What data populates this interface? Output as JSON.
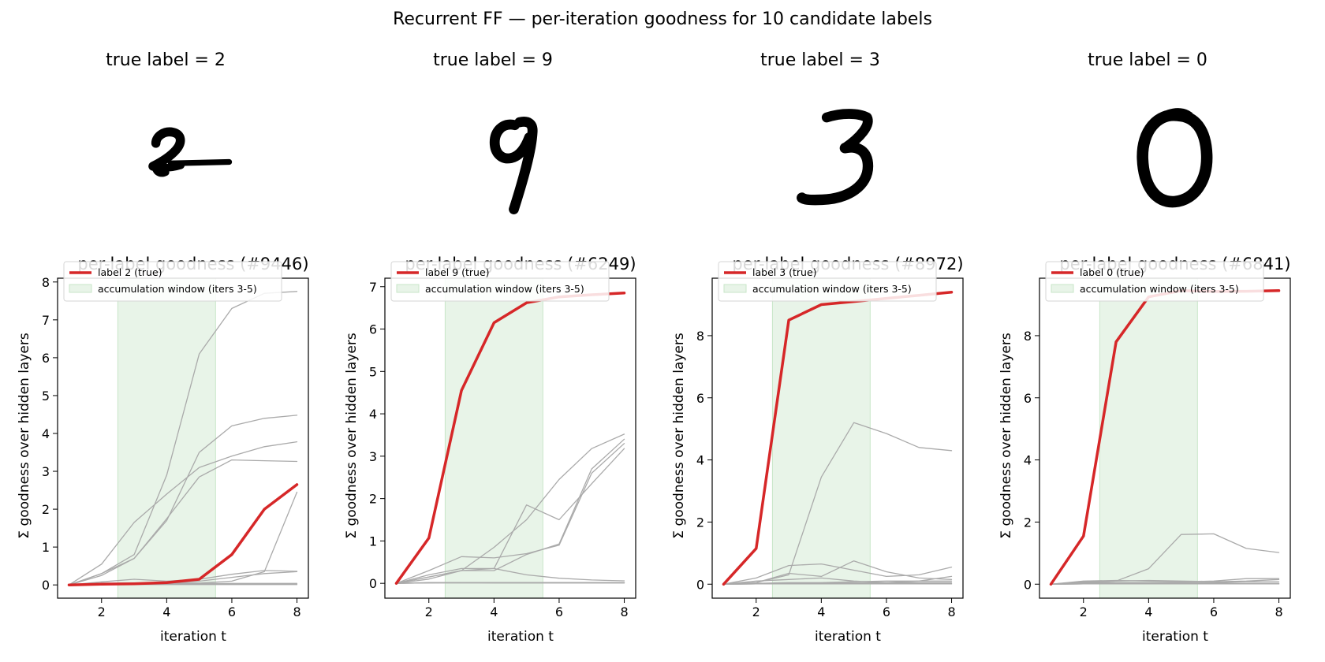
{
  "figure_title": "Recurrent FF — per-iteration goodness for 10 candidate labels",
  "colors": {
    "true_label": "#d62728",
    "other_labels": "#aaaaaa",
    "window_fill": "#e8f4e8",
    "window_edge": "#c8e6c8"
  },
  "panels": [
    {
      "digit_title": "true label = 2",
      "digit_icon": "handwritten-digit-2"
    },
    {
      "digit_title": "true label = 9",
      "digit_icon": "handwritten-digit-9"
    },
    {
      "digit_title": "true label = 3",
      "digit_icon": "handwritten-digit-3"
    },
    {
      "digit_title": "true label = 0",
      "digit_icon": "handwritten-digit-0"
    }
  ],
  "chart_data": [
    {
      "type": "line",
      "title": "per-label goodness (#9446)",
      "xlabel": "iteration t",
      "ylabel": "Σ goodness over hidden layers",
      "x": [
        1,
        2,
        3,
        4,
        5,
        6,
        7,
        8
      ],
      "xlim": [
        0.65,
        8.35
      ],
      "ylim": [
        -0.35,
        8.1
      ],
      "xticks": [
        2,
        4,
        6,
        8
      ],
      "yticks": [
        0,
        1,
        2,
        3,
        4,
        5,
        6,
        7,
        8
      ],
      "window": [
        2.5,
        5.5
      ],
      "legend": {
        "position": "top-left",
        "true_entry": "label 2 (true)",
        "window_entry": "accumulation window (iters 3-5)"
      },
      "series": [
        {
          "true": true,
          "values": [
            0,
            0.02,
            0.03,
            0.06,
            0.15,
            0.8,
            2.0,
            2.65
          ]
        },
        {
          "values": [
            0,
            0.3,
            0.8,
            2.9,
            6.1,
            7.3,
            7.7,
            7.75
          ]
        },
        {
          "values": [
            0,
            0.55,
            1.65,
            2.4,
            3.1,
            3.4,
            3.65,
            3.78
          ]
        },
        {
          "values": [
            0,
            0.3,
            0.7,
            1.7,
            3.5,
            4.2,
            4.4,
            4.48
          ]
        },
        {
          "values": [
            0,
            0.25,
            0.7,
            1.75,
            2.85,
            3.3,
            3.28,
            3.26
          ]
        },
        {
          "values": [
            0,
            0.05,
            0.05,
            0.05,
            0.05,
            0.1,
            0.35,
            2.45
          ]
        },
        {
          "values": [
            0,
            0.08,
            0.15,
            0.1,
            0.15,
            0.28,
            0.38,
            0.36
          ]
        },
        {
          "values": [
            0,
            0.03,
            0.04,
            0.05,
            0.1,
            0.2,
            0.3,
            0.35
          ]
        },
        {
          "values": [
            0,
            0.02,
            0.03,
            0.03,
            0.04,
            0.04,
            0.04,
            0.04
          ]
        },
        {
          "values": [
            0,
            0.01,
            0.01,
            0.01,
            0.01,
            0.01,
            0.01,
            0.01
          ]
        }
      ]
    },
    {
      "type": "line",
      "title": "per-label goodness (#6249)",
      "xlabel": "iteration t",
      "ylabel": "Σ goodness over hidden layers",
      "x": [
        1,
        2,
        3,
        4,
        5,
        6,
        7,
        8
      ],
      "xlim": [
        0.65,
        8.35
      ],
      "ylim": [
        -0.35,
        7.2
      ],
      "xticks": [
        2,
        4,
        6,
        8
      ],
      "yticks": [
        0,
        1,
        2,
        3,
        4,
        5,
        6,
        7
      ],
      "window": [
        2.5,
        5.5
      ],
      "legend": {
        "position": "top-left",
        "true_entry": "label 9 (true)",
        "window_entry": "accumulation window (iters 3-5)"
      },
      "series": [
        {
          "true": true,
          "values": [
            0,
            1.07,
            4.55,
            6.15,
            6.62,
            6.76,
            6.81,
            6.85
          ]
        },
        {
          "values": [
            0,
            0.2,
            0.35,
            0.35,
            1.85,
            1.5,
            2.35,
            3.18
          ]
        },
        {
          "values": [
            0,
            0.15,
            0.3,
            0.85,
            1.5,
            2.45,
            3.18,
            3.52
          ]
        },
        {
          "values": [
            0,
            0.1,
            0.3,
            0.3,
            0.68,
            0.93,
            2.7,
            3.4
          ]
        },
        {
          "values": [
            0,
            0.3,
            0.63,
            0.6,
            0.7,
            0.9,
            2.6,
            3.3
          ]
        },
        {
          "values": [
            0,
            0.15,
            0.3,
            0.35,
            0.2,
            0.12,
            0.08,
            0.06
          ]
        },
        {
          "values": [
            0,
            0.02,
            0.02,
            0.02,
            0.02,
            0.02,
            0.02,
            0.02
          ]
        },
        {
          "values": [
            0,
            0.01,
            0.01,
            0.01,
            0.01,
            0.01,
            0.01,
            0.01
          ]
        },
        {
          "values": [
            0,
            0.01,
            0.02,
            0.01,
            0.01,
            0.01,
            0.01,
            0.01
          ]
        },
        {
          "values": [
            0,
            0.01,
            0.01,
            0.01,
            0.01,
            0.01,
            0.01,
            0.01
          ]
        }
      ]
    },
    {
      "type": "line",
      "title": "per-label goodness (#8972)",
      "xlabel": "iteration t",
      "ylabel": "Σ goodness over hidden layers",
      "x": [
        1,
        2,
        3,
        4,
        5,
        6,
        7,
        8
      ],
      "xlim": [
        0.65,
        8.35
      ],
      "ylim": [
        -0.45,
        9.85
      ],
      "xticks": [
        2,
        4,
        6,
        8
      ],
      "yticks": [
        0,
        2,
        4,
        6,
        8
      ],
      "window": [
        2.5,
        5.5
      ],
      "legend": {
        "position": "top-left",
        "true_entry": "label 3 (true)",
        "window_entry": "accumulation window (iters 3-5)"
      },
      "series": [
        {
          "true": true,
          "values": [
            0,
            1.15,
            8.5,
            9.0,
            9.1,
            9.2,
            9.3,
            9.4
          ]
        },
        {
          "values": [
            0,
            0.05,
            0.3,
            3.45,
            5.2,
            4.85,
            4.4,
            4.3
          ]
        },
        {
          "values": [
            0,
            0.2,
            0.6,
            0.65,
            0.45,
            0.25,
            0.3,
            0.55
          ]
        },
        {
          "values": [
            0,
            0.05,
            0.35,
            0.25,
            0.75,
            0.4,
            0.2,
            0.15
          ]
        },
        {
          "values": [
            0,
            0.1,
            0.15,
            0.2,
            0.1,
            0.05,
            0.1,
            0.25
          ]
        },
        {
          "values": [
            0,
            0.03,
            0.05,
            0.05,
            0.08,
            0.1,
            0.1,
            0.1
          ]
        },
        {
          "values": [
            0,
            0.02,
            0.03,
            0.03,
            0.04,
            0.05,
            0.05,
            0.05
          ]
        },
        {
          "values": [
            0,
            0.01,
            0.02,
            0.02,
            0.02,
            0.02,
            0.02,
            0.02
          ]
        },
        {
          "values": [
            0,
            0.01,
            0.01,
            0.01,
            0.01,
            0.01,
            0.01,
            0.01
          ]
        },
        {
          "values": [
            0,
            0.01,
            0.01,
            0.01,
            0.01,
            0.01,
            0.01,
            0.01
          ]
        }
      ]
    },
    {
      "type": "line",
      "title": "per-label goodness (#6841)",
      "xlabel": "iteration t",
      "ylabel": "Σ goodness over hidden layers",
      "x": [
        1,
        2,
        3,
        4,
        5,
        6,
        7,
        8
      ],
      "xlim": [
        0.65,
        8.35
      ],
      "ylim": [
        -0.45,
        9.85
      ],
      "xticks": [
        2,
        4,
        6,
        8
      ],
      "yticks": [
        0,
        2,
        4,
        6,
        8
      ],
      "window": [
        2.5,
        5.5
      ],
      "legend": {
        "position": "top-left",
        "true_entry": "label 0 (true)",
        "window_entry": "accumulation window (iters 3-5)"
      },
      "series": [
        {
          "true": true,
          "values": [
            0,
            1.55,
            7.8,
            9.25,
            9.45,
            9.42,
            9.43,
            9.45
          ]
        },
        {
          "values": [
            0,
            0.05,
            0.1,
            0.5,
            1.6,
            1.62,
            1.15,
            1.02
          ]
        },
        {
          "values": [
            0,
            0.1,
            0.12,
            0.1,
            0.08,
            0.1,
            0.18,
            0.18
          ]
        },
        {
          "values": [
            0,
            0.08,
            0.1,
            0.12,
            0.1,
            0.08,
            0.1,
            0.15
          ]
        },
        {
          "values": [
            0,
            0.05,
            0.05,
            0.05,
            0.05,
            0.05,
            0.08,
            0.08
          ]
        },
        {
          "values": [
            0,
            0.03,
            0.03,
            0.03,
            0.03,
            0.03,
            0.03,
            0.03
          ]
        },
        {
          "values": [
            0,
            0.02,
            0.02,
            0.02,
            0.02,
            0.02,
            0.02,
            0.02
          ]
        },
        {
          "values": [
            0,
            0.01,
            0.01,
            0.01,
            0.01,
            0.01,
            0.01,
            0.01
          ]
        },
        {
          "values": [
            0,
            0.01,
            0.01,
            0.01,
            0.01,
            0.01,
            0.01,
            0.01
          ]
        },
        {
          "values": [
            0,
            0.01,
            0.01,
            0.01,
            0.01,
            0.01,
            0.01,
            0.01
          ]
        }
      ]
    }
  ]
}
